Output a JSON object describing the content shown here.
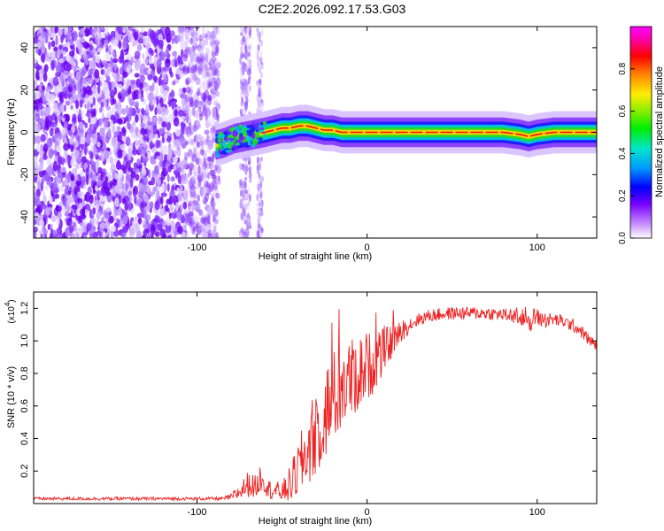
{
  "title": "C2E2.2026.092.17.53.G03",
  "colors": {
    "snr_line": "#ee2222",
    "axis": "#000000",
    "background": "#ffffff"
  },
  "chart_data": [
    {
      "type": "heatmap",
      "name": "spectrogram",
      "xlabel": "Height of straight line (km)",
      "ylabel": "Frequency (Hz)",
      "xlim": [
        -196,
        135
      ],
      "ylim": [
        -50,
        50
      ],
      "x_ticks": [
        -100,
        0,
        100
      ],
      "x_tick_labels": [
        "-100",
        "0",
        "100"
      ],
      "y_ticks": [
        -40,
        -20,
        0,
        20,
        40
      ],
      "y_tick_labels": [
        "-40",
        "-20",
        "0",
        "20",
        "40"
      ],
      "noise_region": {
        "x_from": -196,
        "x_to": -87
      },
      "noise_streaks_x": [
        -73,
        -70,
        -63
      ],
      "signal_trace": {
        "x": [
          -89,
          -84,
          -78,
          -72,
          -66,
          -60,
          -55,
          -50,
          -45,
          -40,
          -35,
          -30,
          -25,
          -20,
          -15,
          -10,
          -5,
          0,
          10,
          20,
          40,
          60,
          80,
          90,
          95,
          100,
          110,
          120,
          135
        ],
        "freq_hz": [
          -6,
          -5,
          -3,
          -2,
          -1,
          0,
          1,
          2,
          2,
          3,
          3,
          2,
          1,
          1,
          0,
          0,
          0,
          0,
          0,
          0,
          0,
          0,
          0,
          -1,
          -2,
          -1,
          0,
          0,
          0
        ]
      },
      "colorbar": {
        "label": "Normalized spectral amplitude",
        "range": [
          0,
          1
        ],
        "ticks": [
          0.0,
          0.2,
          0.4,
          0.6,
          0.8
        ],
        "tick_labels": [
          "0.0",
          "0.2",
          "0.4",
          "0.6",
          "0.8"
        ]
      }
    },
    {
      "type": "line",
      "name": "snr",
      "xlabel": "Height of straight line (km)",
      "ylabel": "SNR (10 * v/v)",
      "scale_label": "(x10",
      "scale_exponent": "4",
      "xlim": [
        -196,
        135
      ],
      "ylim": [
        0,
        1.3
      ],
      "x_ticks": [
        -100,
        0,
        100
      ],
      "x_tick_labels": [
        "-100",
        "0",
        "100"
      ],
      "y_ticks": [
        0.2,
        0.4,
        0.6,
        0.8,
        1.0,
        1.2
      ],
      "y_tick_labels": [
        "0.2",
        "0.4",
        "0.6",
        "0.8",
        "1.0",
        "1.2"
      ],
      "series": [
        {
          "name": "SNR",
          "x": [
            -196,
            -180,
            -160,
            -140,
            -120,
            -100,
            -85,
            -80,
            -75,
            -70,
            -65,
            -62,
            -58,
            -55,
            -50,
            -45,
            -40,
            -35,
            -30,
            -25,
            -20,
            -15,
            -10,
            -5,
            0,
            5,
            10,
            15,
            20,
            25,
            30,
            35,
            40,
            50,
            60,
            70,
            80,
            90,
            95,
            100,
            105,
            110,
            115,
            120,
            125,
            130,
            135
          ],
          "y": [
            0.03,
            0.03,
            0.03,
            0.03,
            0.03,
            0.03,
            0.03,
            0.04,
            0.07,
            0.12,
            0.1,
            0.18,
            0.09,
            0.08,
            0.07,
            0.12,
            0.22,
            0.33,
            0.45,
            0.55,
            0.64,
            0.72,
            0.76,
            0.8,
            0.84,
            0.88,
            0.94,
            1.0,
            1.06,
            1.1,
            1.13,
            1.15,
            1.16,
            1.17,
            1.17,
            1.17,
            1.16,
            1.15,
            1.14,
            1.14,
            1.13,
            1.13,
            1.12,
            1.1,
            1.07,
            1.01,
            0.97
          ],
          "noise_amp": [
            0.01,
            0.01,
            0.01,
            0.01,
            0.01,
            0.01,
            0.01,
            0.02,
            0.05,
            0.08,
            0.07,
            0.1,
            0.06,
            0.06,
            0.06,
            0.12,
            0.18,
            0.24,
            0.28,
            0.3,
            0.3,
            0.28,
            0.26,
            0.24,
            0.22,
            0.18,
            0.14,
            0.1,
            0.07,
            0.05,
            0.04,
            0.04,
            0.04,
            0.04,
            0.04,
            0.04,
            0.04,
            0.06,
            0.08,
            0.06,
            0.05,
            0.04,
            0.04,
            0.04,
            0.04,
            0.04,
            0.03
          ]
        }
      ]
    }
  ]
}
